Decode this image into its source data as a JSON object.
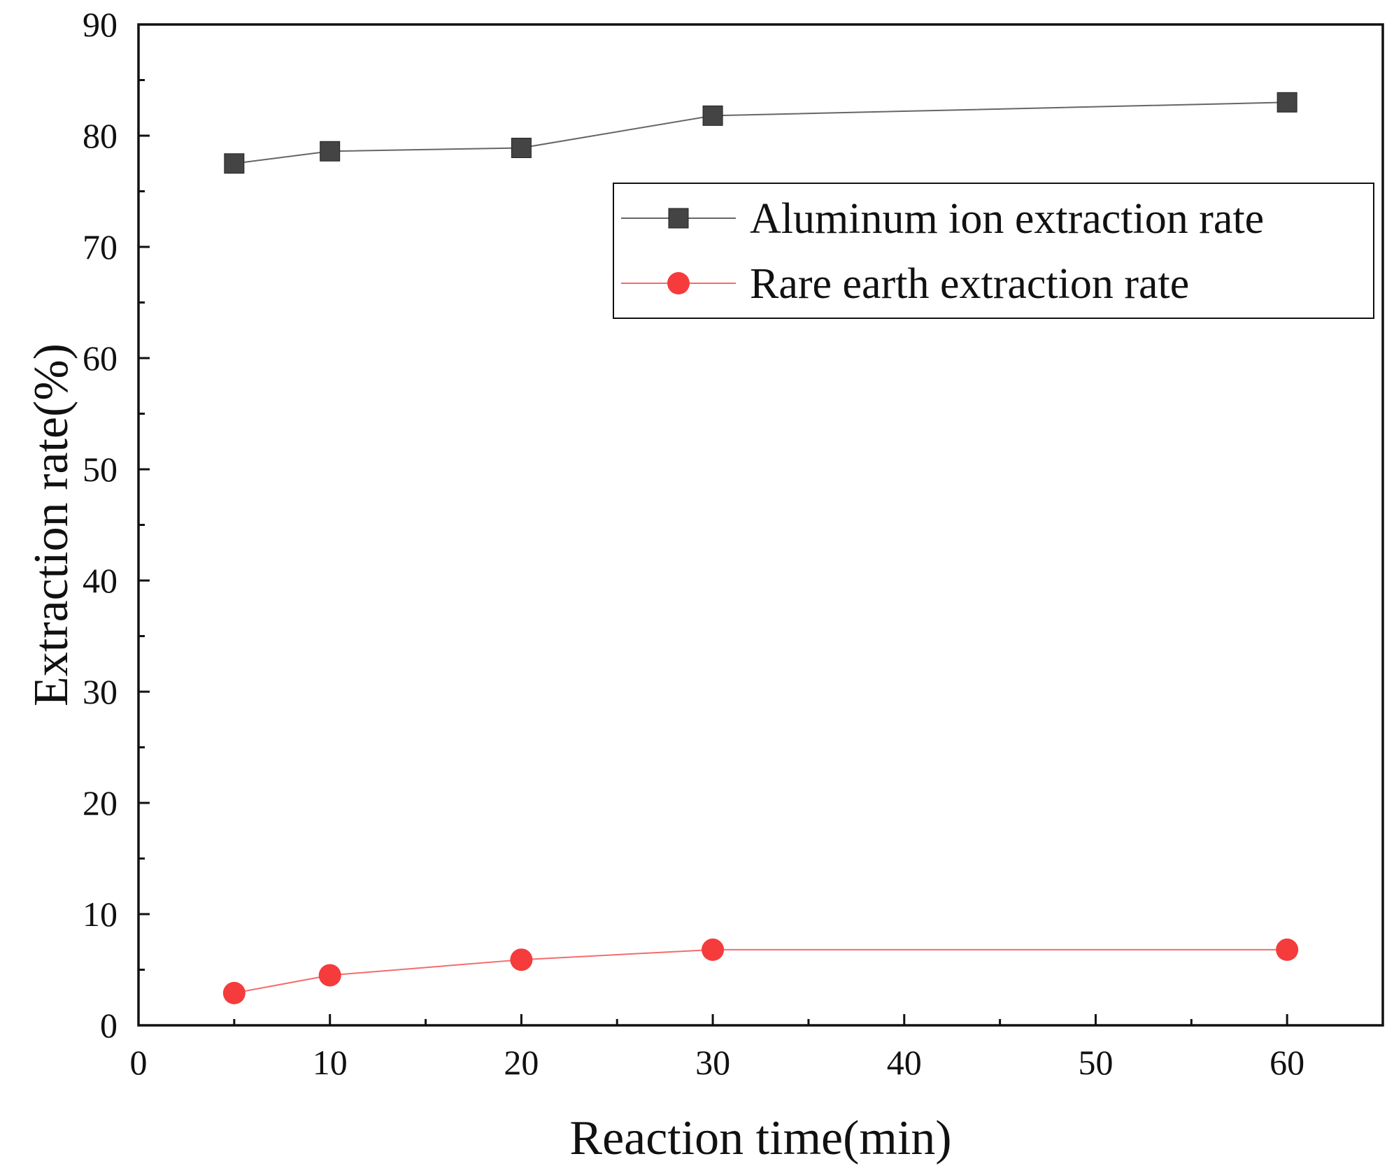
{
  "chart_data": {
    "type": "line",
    "xlabel": "Reaction time(min)",
    "ylabel": "Extraction rate(%)",
    "xlim": [
      0,
      65
    ],
    "ylim": [
      0,
      90
    ],
    "x_ticks": [
      0,
      10,
      20,
      30,
      40,
      50,
      60
    ],
    "y_ticks": [
      0,
      10,
      20,
      30,
      40,
      50,
      60,
      70,
      80,
      90
    ],
    "x_tick_labels": [
      "0",
      "10",
      "20",
      "30",
      "40",
      "50",
      "60"
    ],
    "y_tick_labels": [
      "0",
      "10",
      "20",
      "30",
      "40",
      "50",
      "60",
      "70",
      "80",
      "90"
    ],
    "grid": false,
    "legend_position": "upper-right",
    "series": [
      {
        "name": "Aluminum ion extraction rate",
        "marker": "square",
        "color": "#444444",
        "line_color": "#666666",
        "x": [
          5,
          10,
          20,
          30,
          60
        ],
        "y": [
          77.5,
          78.6,
          78.9,
          81.8,
          83.0
        ]
      },
      {
        "name": "Rare earth extraction rate",
        "marker": "circle",
        "color": "#f53b3b",
        "line_color": "#f56b6b",
        "x": [
          5,
          10,
          20,
          30,
          60
        ],
        "y": [
          2.9,
          4.5,
          5.9,
          6.8,
          6.8
        ]
      }
    ]
  }
}
